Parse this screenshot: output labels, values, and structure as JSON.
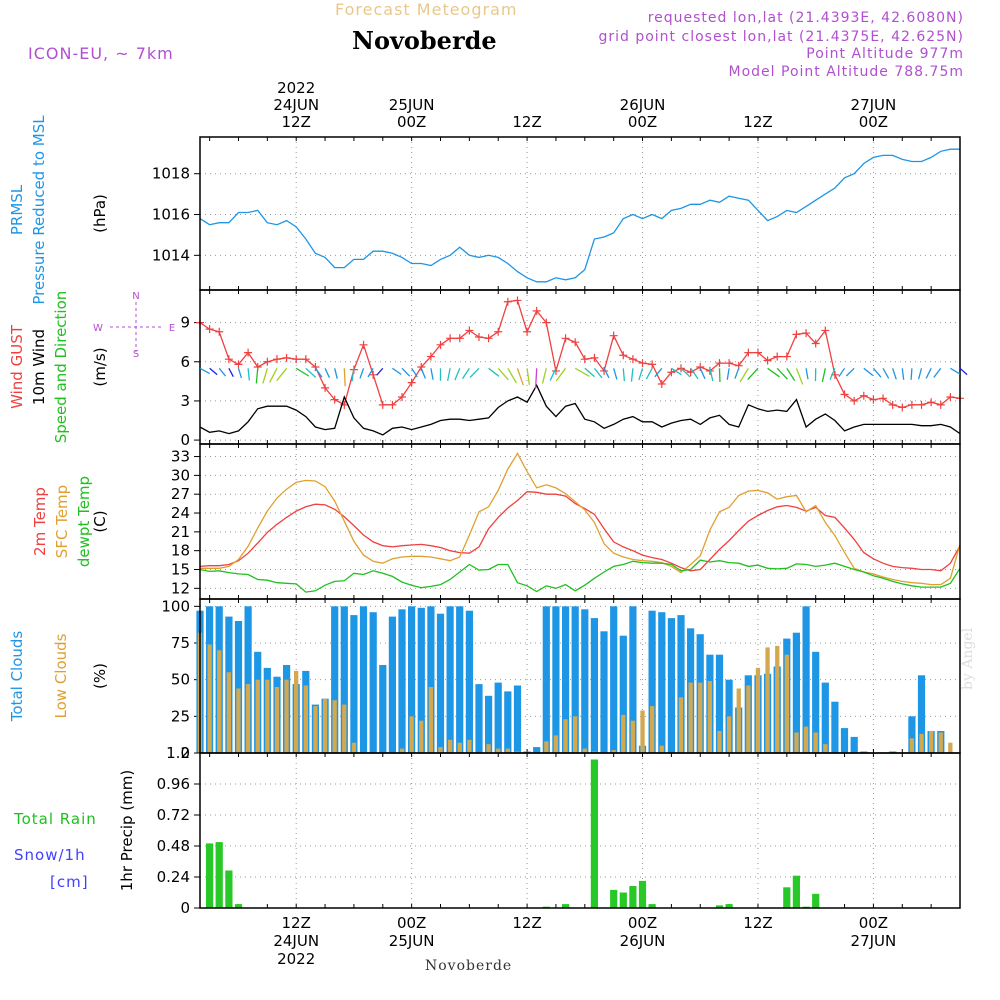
{
  "header": {
    "super_title": "Forecast Meteogram",
    "title": "Novoberde",
    "model": "ICON-EU, ~ 7km",
    "requested": "requested lon,lat (21.4393E, 42.6080N)",
    "grid_point": "grid point closest lon,lat (21.4375E, 42.625N)",
    "point_altitude": "Point Altitude 977m",
    "model_altitude": "Model Point Altitude 788.75m",
    "watermark": "by Angel",
    "footer": "Novoberde"
  },
  "colors": {
    "pressure": "#1e96e6",
    "gust": "#f04040",
    "wind": "#000000",
    "temp2m": "#f04040",
    "sfc_temp": "#e0a030",
    "dewpt": "#20c020",
    "total_clouds": "#1e96e6",
    "low_clouds": "#d2a850",
    "rain": "#28c828",
    "snow": "#4040ff",
    "compass": "#b050d0"
  },
  "time_axis": {
    "top_labels": [
      {
        "hour": 12,
        "lines": [
          "2022",
          "24JUN",
          "12Z"
        ]
      },
      {
        "hour": 24,
        "lines": [
          "25JUN",
          "00Z"
        ]
      },
      {
        "hour": 36,
        "lines": [
          "12Z"
        ]
      },
      {
        "hour": 48,
        "lines": [
          "26JUN",
          "00Z"
        ]
      },
      {
        "hour": 60,
        "lines": [
          "12Z"
        ]
      },
      {
        "hour": 72,
        "lines": [
          "27JUN",
          "00Z"
        ]
      }
    ],
    "bottom_labels": [
      {
        "hour": 12,
        "lines": [
          "12Z",
          "24JUN",
          "2022"
        ]
      },
      {
        "hour": 24,
        "lines": [
          "00Z",
          "25JUN"
        ]
      },
      {
        "hour": 36,
        "lines": [
          "12Z"
        ]
      },
      {
        "hour": 48,
        "lines": [
          "00Z",
          "26JUN"
        ]
      },
      {
        "hour": 60,
        "lines": [
          "12Z"
        ]
      },
      {
        "hour": 72,
        "lines": [
          "00Z",
          "27JUN"
        ]
      }
    ]
  },
  "chart_data": [
    {
      "type": "line",
      "ylabel_lines": [
        {
          "text": "PRMSL",
          "color": "#1e96e6"
        },
        {
          "text": "Pressure Reduced to MSL",
          "color": "#1e96e6"
        }
      ],
      "unit": "(hPa)",
      "ylim": [
        1012.3,
        1019.8
      ],
      "yticks": [
        1014,
        1016,
        1018
      ],
      "series": [
        {
          "color": "#1e96e6",
          "values": [
            1015.8,
            1015.5,
            1015.6,
            1015.6,
            1016.1,
            1016.1,
            1016.2,
            1015.6,
            1015.5,
            1015.7,
            1015.4,
            1014.8,
            1014.1,
            1013.9,
            1013.4,
            1013.4,
            1013.8,
            1013.8,
            1014.2,
            1014.2,
            1014.1,
            1013.9,
            1013.6,
            1013.6,
            1013.5,
            1013.8,
            1014.0,
            1014.4,
            1014.0,
            1013.9,
            1014.0,
            1013.9,
            1013.6,
            1013.2,
            1012.9,
            1012.7,
            1012.7,
            1012.9,
            1012.8,
            1012.9,
            1013.3,
            1014.8,
            1014.9,
            1015.1,
            1015.8,
            1016.0,
            1015.8,
            1016.0,
            1015.8,
            1016.2,
            1016.3,
            1016.5,
            1016.5,
            1016.7,
            1016.6,
            1016.9,
            1016.8,
            1016.7,
            1016.2,
            1015.7,
            1015.9,
            1016.2,
            1016.1,
            1016.4,
            1016.7,
            1017.0,
            1017.3,
            1017.8,
            1018.0,
            1018.5,
            1018.8,
            1018.9,
            1018.9,
            1018.7,
            1018.6,
            1018.6,
            1018.8,
            1019.1,
            1019.2,
            1019.2
          ]
        }
      ]
    },
    {
      "type": "line",
      "ylabel_lines": [
        {
          "text": "Wind GUST",
          "color": "#f04040"
        },
        {
          "text": "10m Wind",
          "color": "#000000"
        },
        {
          "text": "Speed and Direction",
          "color": "#20c020"
        }
      ],
      "unit": "(m/s)",
      "compass": {
        "n": "N",
        "s": "S",
        "e": "E",
        "w": "W"
      },
      "ylim": [
        -0.3,
        11.5
      ],
      "yticks": [
        0,
        3,
        6,
        9
      ],
      "series": [
        {
          "name": "Wind GUST",
          "color": "#f04040",
          "marker": "plus",
          "values": [
            9.0,
            8.5,
            8.3,
            6.2,
            5.8,
            6.7,
            5.6,
            6.0,
            6.2,
            6.3,
            6.2,
            6.2,
            5.6,
            4.0,
            3.1,
            2.7,
            5.4,
            7.3,
            5.0,
            2.7,
            2.7,
            3.3,
            4.4,
            5.6,
            6.4,
            7.3,
            7.8,
            7.8,
            8.4,
            7.9,
            7.8,
            8.3,
            10.6,
            10.7,
            8.3,
            9.9,
            9.0,
            5.3,
            7.8,
            7.5,
            6.2,
            6.3,
            5.3,
            8.0,
            6.5,
            6.2,
            5.9,
            5.8,
            4.3,
            5.2,
            5.5,
            5.2,
            5.6,
            5.3,
            5.9,
            5.9,
            5.7,
            6.7,
            6.7,
            6.1,
            6.4,
            6.4,
            8.1,
            8.2,
            7.4,
            8.4,
            5.0,
            3.5,
            3.0,
            3.4,
            3.1,
            3.2,
            2.7,
            2.5,
            2.7,
            2.7,
            2.9,
            2.7,
            3.3,
            3.2
          ]
        },
        {
          "name": "10m Wind",
          "color": "#000000",
          "values": [
            1.0,
            0.6,
            0.7,
            0.5,
            0.7,
            1.4,
            2.4,
            2.6,
            2.6,
            2.6,
            2.3,
            1.8,
            1.0,
            0.8,
            0.9,
            3.3,
            1.7,
            0.9,
            0.7,
            0.4,
            0.9,
            1.0,
            0.8,
            1.0,
            1.2,
            1.5,
            1.6,
            1.6,
            1.5,
            1.6,
            1.7,
            2.5,
            3.0,
            3.3,
            2.9,
            4.2,
            2.6,
            1.8,
            2.6,
            2.8,
            1.6,
            1.4,
            0.9,
            1.2,
            1.6,
            1.8,
            1.4,
            1.4,
            1.0,
            1.3,
            1.5,
            1.6,
            1.2,
            1.7,
            1.9,
            1.2,
            1.0,
            2.7,
            2.4,
            2.2,
            2.3,
            2.2,
            3.1,
            1.0,
            1.6,
            2.0,
            1.5,
            0.7,
            1.0,
            1.2,
            1.2,
            1.2,
            1.2,
            1.2,
            1.2,
            1.1,
            1.1,
            1.2,
            1.0,
            0.5
          ]
        }
      ]
    },
    {
      "type": "line",
      "ylabel_lines": [
        {
          "text": "2m Temp",
          "color": "#f04040"
        },
        {
          "text": "SFC Temp",
          "color": "#e0a030"
        },
        {
          "text": "dewpt Temp",
          "color": "#20c020"
        }
      ],
      "unit": "(C)",
      "ylim": [
        10.3,
        35
      ],
      "yticks": [
        12,
        15,
        18,
        21,
        24,
        27,
        30,
        33
      ],
      "series": [
        {
          "name": "2m Temp",
          "color": "#f04040",
          "values": [
            15.5,
            15.6,
            15.6,
            15.8,
            16.4,
            17.6,
            19.2,
            20.9,
            22.2,
            23.3,
            24.3,
            25.0,
            25.4,
            25.3,
            24.6,
            23.4,
            22.0,
            20.5,
            19.4,
            18.8,
            18.6,
            18.8,
            18.9,
            19.0,
            18.8,
            18.5,
            18.0,
            17.7,
            17.6,
            18.6,
            21.5,
            23.3,
            24.8,
            26.0,
            27.4,
            27.3,
            27.0,
            27.0,
            26.7,
            25.5,
            24.7,
            23.8,
            21.5,
            19.4,
            18.6,
            18.0,
            17.3,
            16.9,
            16.6,
            16.0,
            15.3,
            14.8,
            15.0,
            16.6,
            18.2,
            19.6,
            21.2,
            22.7,
            23.6,
            24.4,
            25.0,
            25.2,
            24.9,
            24.3,
            24.9,
            23.6,
            23.3,
            21.6,
            19.8,
            17.7,
            16.7,
            16.0,
            15.5,
            15.3,
            15.2,
            15.0,
            15.0,
            14.8,
            16.0,
            18.8
          ]
        },
        {
          "name": "SFC Temp",
          "color": "#e0a030",
          "values": [
            15.2,
            15.2,
            15.2,
            15.5,
            16.6,
            18.7,
            21.6,
            24.3,
            26.4,
            27.8,
            28.9,
            29.2,
            29.1,
            28.2,
            25.9,
            22.7,
            19.5,
            17.3,
            16.3,
            16.0,
            16.7,
            17.0,
            17.1,
            17.1,
            17.0,
            16.7,
            16.4,
            17.0,
            20.5,
            24.2,
            25.0,
            27.6,
            31.0,
            33.5,
            30.6,
            28.0,
            28.5,
            28.0,
            27.1,
            25.8,
            24.5,
            22.5,
            19.1,
            17.6,
            17.0,
            16.6,
            16.4,
            16.3,
            16.1,
            15.5,
            14.5,
            15.8,
            17.2,
            21.3,
            24.2,
            24.9,
            26.8,
            27.5,
            27.6,
            27.2,
            26.2,
            26.6,
            26.8,
            24.2,
            25.2,
            22.5,
            20.4,
            17.7,
            15.2,
            14.6,
            14.3,
            13.8,
            13.4,
            13.1,
            12.9,
            12.8,
            12.6,
            12.6,
            13.6,
            19.0
          ]
        },
        {
          "name": "dewpt Temp",
          "color": "#20c020",
          "values": [
            15.0,
            14.7,
            14.8,
            14.5,
            14.3,
            14.2,
            13.4,
            13.3,
            12.9,
            12.8,
            12.7,
            11.4,
            11.6,
            12.5,
            13.1,
            13.2,
            14.4,
            14.2,
            14.8,
            14.4,
            13.9,
            13.0,
            12.5,
            12.1,
            12.3,
            12.6,
            13.4,
            14.6,
            15.8,
            14.9,
            15.0,
            15.8,
            15.8,
            12.9,
            12.4,
            11.5,
            12.4,
            12.0,
            12.6,
            11.6,
            12.5,
            13.6,
            14.6,
            15.5,
            15.8,
            16.3,
            16.1,
            16.0,
            16.0,
            15.8,
            14.8,
            15.0,
            16.5,
            16.2,
            16.4,
            16.1,
            16.0,
            15.5,
            15.7,
            15.2,
            15.1,
            15.2,
            15.9,
            15.8,
            15.5,
            15.7,
            16.0,
            15.5,
            15.0,
            14.6,
            14.0,
            13.6,
            13.1,
            12.7,
            12.4,
            12.2,
            12.2,
            12.2,
            12.8,
            15.2
          ]
        }
      ]
    },
    {
      "type": "bar",
      "ylabel_lines": [
        {
          "text": "Total Clouds",
          "color": "#1e96e6"
        },
        {
          "text": "Low Clouds",
          "color": "#e0a030"
        }
      ],
      "unit": "(%)",
      "ylim": [
        0,
        105
      ],
      "yticks": [
        0,
        25,
        50,
        75,
        100
      ],
      "series": [
        {
          "name": "Total Clouds",
          "color": "#1e96e6",
          "values": [
            97,
            100,
            100,
            93,
            90,
            100,
            69,
            58,
            52,
            60,
            47,
            56,
            33,
            37,
            100,
            100,
            94,
            100,
            96,
            60,
            93,
            98,
            100,
            99,
            100,
            95,
            100,
            100,
            97,
            47,
            39,
            48,
            42,
            46,
            1,
            4,
            100,
            100,
            100,
            100,
            98,
            92,
            83,
            100,
            80,
            100,
            5,
            97,
            96,
            92,
            94,
            85,
            81,
            67,
            67,
            50,
            31,
            53,
            53,
            54,
            59,
            78,
            82,
            100,
            69,
            48,
            35,
            17,
            11,
            1,
            0,
            0,
            1,
            0,
            25,
            53,
            15,
            15,
            0,
            0
          ]
        },
        {
          "name": "Low Clouds",
          "color": "#d2a850",
          "values": [
            82,
            74,
            70,
            55,
            44,
            47,
            50,
            50,
            45,
            50,
            56,
            46,
            32,
            37,
            36,
            33,
            7,
            0,
            0,
            0,
            0,
            3,
            25,
            22,
            45,
            4,
            9,
            7,
            9,
            0,
            6,
            3,
            3,
            1,
            0,
            0,
            8,
            12,
            23,
            25,
            3,
            1,
            0,
            2,
            26,
            22,
            29,
            32,
            5,
            0,
            38,
            48,
            48,
            49,
            15,
            25,
            44,
            46,
            58,
            72,
            73,
            67,
            14,
            18,
            14,
            6,
            0,
            0,
            0,
            0,
            0,
            0,
            0,
            0,
            10,
            13,
            15,
            14,
            7,
            0
          ]
        }
      ]
    },
    {
      "type": "bar",
      "ylabel_lines": [
        {
          "text": "Total  Rain",
          "color": "#20c020"
        },
        {
          "text": "Snow/1h",
          "color": "#4040ff"
        },
        {
          "text": "[cm]",
          "color": "#4040ff"
        }
      ],
      "unit": "1hr Precip (mm)",
      "ylim": [
        0,
        1.2
      ],
      "yticks": [
        0,
        0.24,
        0.48,
        0.72,
        0.96,
        1.2
      ],
      "ytick_labels": [
        "0",
        "0.24",
        "0.48",
        "0.72",
        "0.96",
        "1.2"
      ],
      "series": [
        {
          "name": "Total Rain",
          "color": "#28c828",
          "values": [
            0,
            0.5,
            0.51,
            0.29,
            0.03,
            0,
            0,
            0,
            0,
            0,
            0,
            0,
            0,
            0,
            0,
            0,
            0,
            0,
            0,
            0,
            0,
            0,
            0,
            0,
            0,
            0,
            0,
            0,
            0,
            0,
            0,
            0,
            0,
            0,
            0,
            0,
            0.01,
            0,
            0.03,
            0,
            0,
            1.15,
            0,
            0.14,
            0.12,
            0.17,
            0.21,
            0.03,
            0,
            0,
            0,
            0,
            0,
            0,
            0.02,
            0.03,
            0,
            0,
            0,
            0,
            0,
            0.16,
            0.25,
            0.01,
            0.11,
            0,
            0,
            0,
            0,
            0,
            0,
            0,
            0,
            0,
            0,
            0,
            0,
            0,
            0,
            0
          ]
        }
      ]
    }
  ]
}
